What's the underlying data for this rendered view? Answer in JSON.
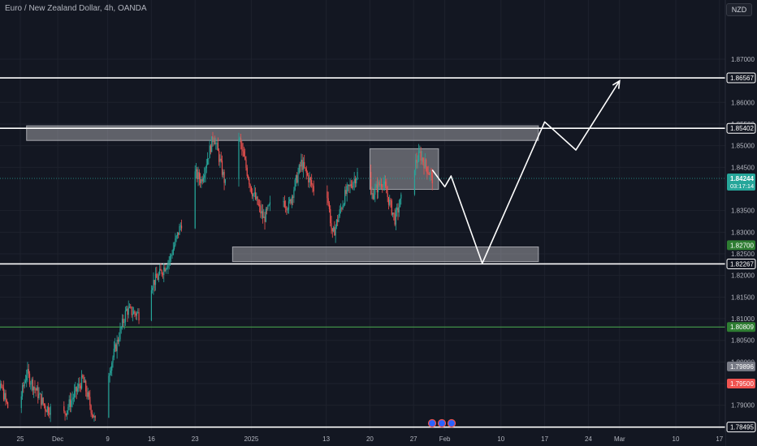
{
  "header": {
    "title": "Euro / New Zealand Dollar, 4h, OANDA",
    "currency": "NZD"
  },
  "colors": {
    "background": "#131722",
    "up": "#26a69a",
    "down": "#ef5350",
    "grid": "#1e222d",
    "axis_text": "#b2b5be",
    "drawing": "#ffffff",
    "green_line": "#4caf50"
  },
  "chart_data": {
    "type": "candlestick",
    "title": "Euro / New Zealand Dollar, 4h, OANDA",
    "y_ticks": [
      "1.87000",
      "1.86000",
      "1.85500",
      "1.85000",
      "1.84500",
      "1.83500",
      "1.83000",
      "1.82500",
      "1.82000",
      "1.81500",
      "1.81000",
      "1.80500",
      "1.80000",
      "1.79500",
      "1.79000"
    ],
    "x_ticks": [
      "25",
      "Dec",
      "9",
      "16",
      "23",
      "2025",
      "13",
      "20",
      "27",
      "Feb",
      "10",
      "17",
      "24",
      "Mar",
      "10",
      "17"
    ],
    "ylim": [
      1.7832,
      1.8818
    ],
    "current_price": {
      "value": "1.84244",
      "countdown": "03:17:14"
    },
    "price_tags": [
      {
        "value": "1.86567",
        "style": "dark"
      },
      {
        "value": "1.85402",
        "style": "dark"
      },
      {
        "value": "1.82700",
        "style": "green"
      },
      {
        "value": "1.82267",
        "style": "dark"
      },
      {
        "value": "1.80809",
        "style": "green"
      },
      {
        "value": "1.79896",
        "style": "gray"
      },
      {
        "value": "1.79500",
        "style": "red"
      },
      {
        "value": "1.78495",
        "style": "dark"
      }
    ],
    "horizontal_lines": [
      {
        "price": 1.86567,
        "color": "white"
      },
      {
        "price": 1.85402,
        "color": "white"
      },
      {
        "price": 1.82267,
        "color": "white"
      },
      {
        "price": 1.80809,
        "color": "green"
      },
      {
        "price": 1.78495,
        "color": "white"
      }
    ],
    "zones": [
      {
        "from_date": "2024-11-26",
        "to_date": "2025-02-16",
        "top": 1.8546,
        "bottom": 1.8512
      },
      {
        "from_date": "2024-12-29",
        "to_date": "2025-02-16",
        "top": 1.8266,
        "bottom": 1.8232
      },
      {
        "from_date": "2025-01-20",
        "to_date": "2025-01-31",
        "top": 1.8493,
        "bottom": 1.8399
      }
    ],
    "projection_path": [
      {
        "date": "2025-01-30",
        "price": 1.8444
      },
      {
        "date": "2025-02-01",
        "price": 1.8405
      },
      {
        "date": "2025-02-02",
        "price": 1.843
      },
      {
        "date": "2025-02-07",
        "price": 1.8228
      },
      {
        "date": "2025-02-17",
        "price": 1.8555
      },
      {
        "date": "2025-02-22",
        "price": 1.849
      },
      {
        "date": "2025-03-01",
        "price": 1.865
      }
    ],
    "ohlc_path": [
      [
        "2024-11-20",
        1.79
      ],
      [
        "2024-11-22",
        1.794
      ],
      [
        "2024-11-24",
        1.785
      ],
      [
        "2024-11-26",
        1.7975
      ],
      [
        "2024-11-29",
        1.7895
      ],
      [
        "2024-12-02",
        1.788
      ],
      [
        "2024-12-05",
        1.796
      ],
      [
        "2024-12-07",
        1.786
      ],
      [
        "2024-12-10",
        1.802
      ],
      [
        "2024-12-12",
        1.812
      ],
      [
        "2024-12-14",
        1.811
      ],
      [
        "2024-12-16",
        1.818
      ],
      [
        "2024-12-17",
        1.8195
      ],
      [
        "2024-12-19",
        1.824
      ],
      [
        "2024-12-21",
        1.833
      ],
      [
        "2024-12-22",
        1.845
      ],
      [
        "2024-12-24",
        1.842
      ],
      [
        "2024-12-26",
        1.8525
      ],
      [
        "2024-12-28",
        1.84
      ],
      [
        "2024-12-30",
        1.852
      ],
      [
        "2025-01-01",
        1.84
      ],
      [
        "2025-01-03",
        1.833
      ],
      [
        "2025-01-05",
        1.839
      ],
      [
        "2025-01-07",
        1.836
      ],
      [
        "2025-01-09",
        1.846
      ],
      [
        "2025-01-11",
        1.84
      ],
      [
        "2025-01-13",
        1.841
      ],
      [
        "2025-01-14",
        1.829
      ],
      [
        "2025-01-16",
        1.8385
      ],
      [
        "2025-01-18",
        1.8435
      ],
      [
        "2025-01-20",
        1.838
      ],
      [
        "2025-01-22",
        1.842
      ],
      [
        "2025-01-24",
        1.833
      ],
      [
        "2025-01-26",
        1.842
      ],
      [
        "2025-01-28",
        1.848
      ],
      [
        "2025-01-30",
        1.8424
      ]
    ]
  }
}
